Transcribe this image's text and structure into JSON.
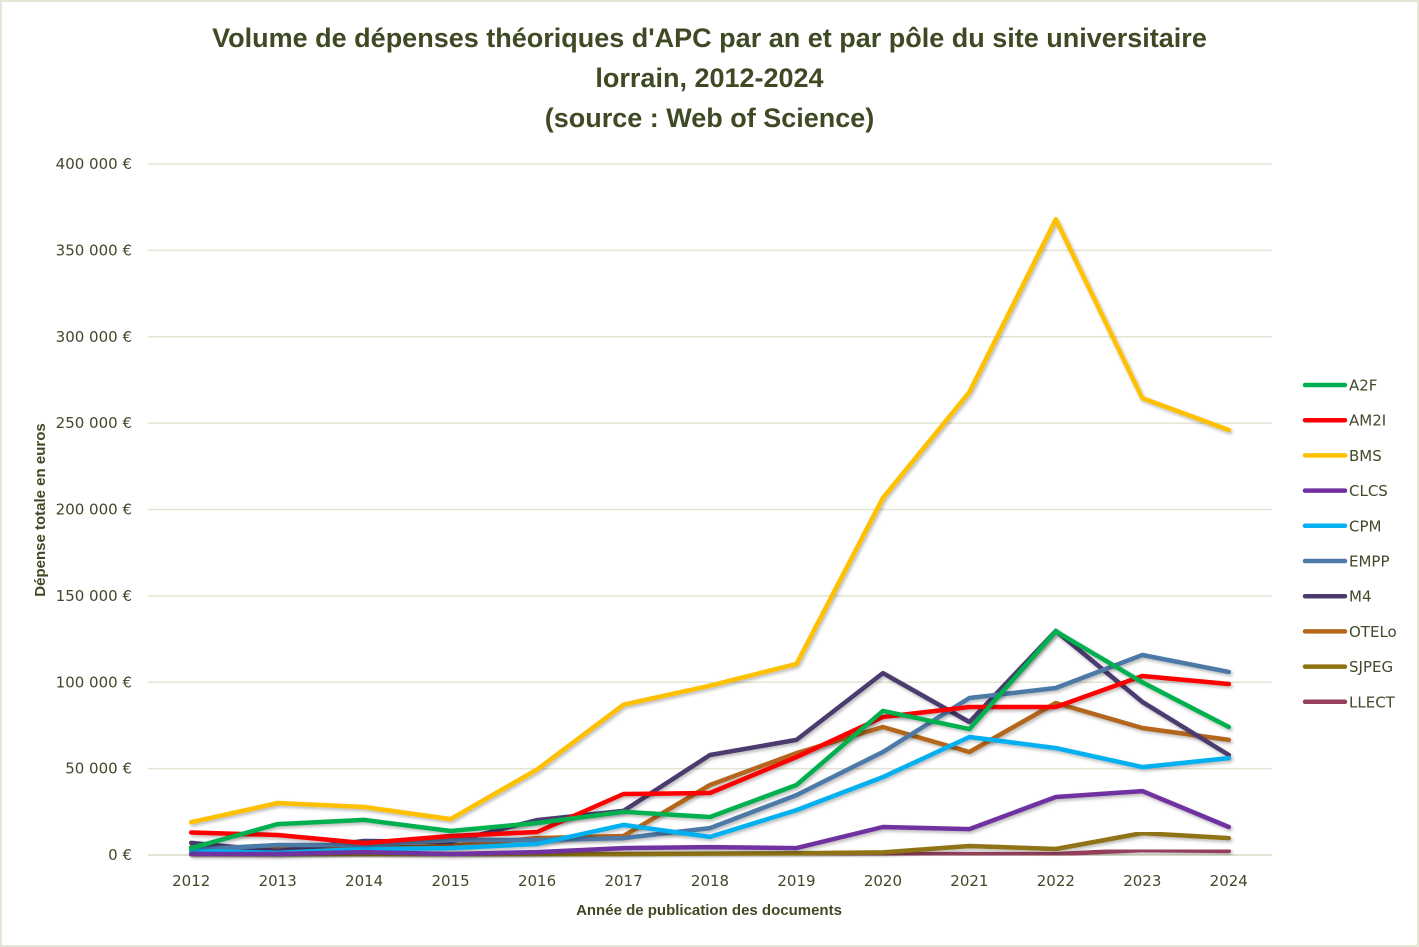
{
  "chart_data": {
    "type": "line",
    "title": [
      "Volume de dépenses théoriques d'APC par an et par pôle du site universitaire",
      "lorrain, 2012-2024",
      "(source : Web of Science)"
    ],
    "xlabel": "Année de publication des documents",
    "ylabel": "Dépense totale en euros",
    "x": [
      "2012",
      "2013",
      "2014",
      "2015",
      "2016",
      "2017",
      "2018",
      "2019",
      "2020",
      "2021",
      "2022",
      "2023",
      "2024"
    ],
    "ylim": [
      0,
      400000
    ],
    "yticks": [
      0,
      50000,
      100000,
      150000,
      200000,
      250000,
      300000,
      350000,
      400000
    ],
    "ytick_labels": [
      "0 €",
      "50 000 €",
      "100 000 €",
      "150 000 €",
      "200 000 €",
      "250 000 €",
      "300 000 €",
      "350 000 €",
      "400 000 €"
    ],
    "grid": "horizontal",
    "legend_position": "right",
    "series": [
      {
        "name": "A2F",
        "color": "#00b050",
        "values": [
          4000,
          17900,
          20300,
          13900,
          18500,
          25000,
          22000,
          40500,
          83400,
          72900,
          129500,
          100000,
          74100
        ]
      },
      {
        "name": "AM2I",
        "color": "#ff0000",
        "values": [
          13000,
          11600,
          6900,
          11000,
          13300,
          35300,
          35900,
          56700,
          79900,
          85700,
          85700,
          103600,
          99000
        ]
      },
      {
        "name": "BMS",
        "color": "#ffc000",
        "values": [
          19000,
          30100,
          27800,
          20800,
          49500,
          87000,
          98000,
          110600,
          206700,
          268000,
          368000,
          264500,
          246000
        ]
      },
      {
        "name": "CLCS",
        "color": "#7030a0",
        "values": [
          600,
          600,
          1700,
          600,
          1700,
          4000,
          4600,
          4000,
          16200,
          15000,
          33600,
          37000,
          16200
        ]
      },
      {
        "name": "CPM",
        "color": "#00b0f0",
        "values": [
          2500,
          1200,
          3500,
          4000,
          6400,
          17400,
          10500,
          26000,
          45100,
          68300,
          61900,
          50900,
          56100
        ]
      },
      {
        "name": "EMPP",
        "color": "#4e79a7",
        "values": [
          3000,
          5800,
          5800,
          8700,
          8700,
          9800,
          15600,
          34700,
          59600,
          90900,
          96700,
          115800,
          106000
        ]
      },
      {
        "name": "M4",
        "color": "#4b3a6e",
        "values": [
          7000,
          2300,
          8100,
          7500,
          20200,
          25500,
          57900,
          66600,
          105300,
          77000,
          129700,
          88600,
          57900
        ]
      },
      {
        "name": "OTELo",
        "color": "#b4661a",
        "values": [
          4500,
          4000,
          4000,
          5200,
          9800,
          11000,
          40500,
          59000,
          74100,
          59600,
          88000,
          73500,
          66600
        ]
      },
      {
        "name": "SJPEG",
        "color": "#8f7312",
        "values": [
          500,
          500,
          500,
          500,
          500,
          500,
          800,
          1000,
          1500,
          5200,
          3500,
          12700,
          9800
        ]
      },
      {
        "name": "LLECT",
        "color": "#943f5d",
        "values": [
          300,
          300,
          300,
          300,
          500,
          500,
          500,
          500,
          500,
          500,
          500,
          2900,
          2300
        ]
      }
    ]
  }
}
